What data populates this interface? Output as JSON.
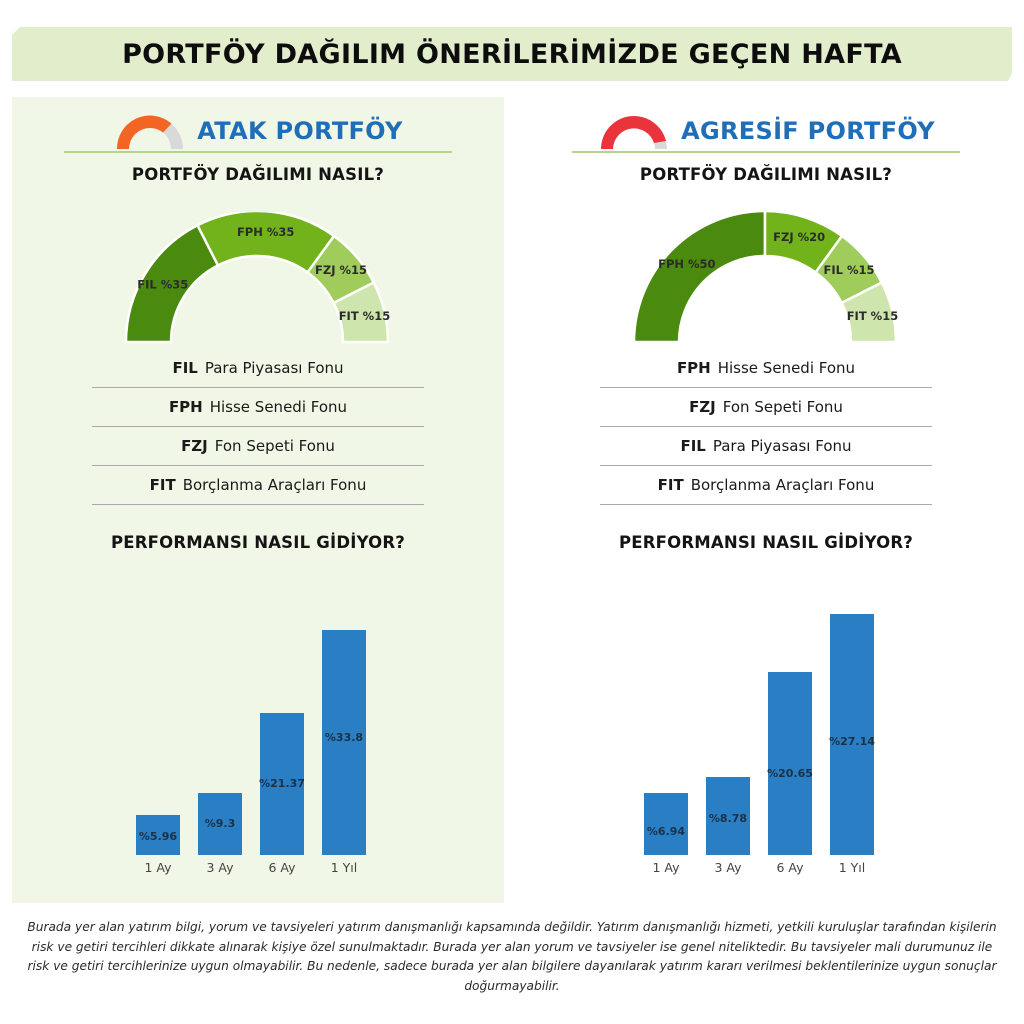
{
  "title": "PORTFÖY DAĞILIM ÖNERİLERİMİZDE GEÇEN HAFTA",
  "colors": {
    "banner_bg": "#e2edcc",
    "left_panel_bg": "#f1f7e7",
    "brand_blue": "#1f6fb8",
    "bar_blue": "#2a7ec3",
    "green_dark": "#4a8a0f",
    "green_mid": "#72b31b",
    "green_light": "#9fcc5b",
    "green_pale": "#cfe5ae",
    "gauge_orange": "#f26522",
    "gauge_red": "#e8343a",
    "gauge_grey": "#d9d9d9"
  },
  "panels": [
    {
      "name": "ATAK PORTFÖY",
      "gauge_icon": "risk-gauge-orange-icon",
      "allocation_title": "PORTFÖY DAĞILIMI NASIL?",
      "legend": [
        {
          "code": "FIL",
          "label": "Para Piyasası Fonu"
        },
        {
          "code": "FPH",
          "label": "Hisse Senedi Fonu"
        },
        {
          "code": "FZJ",
          "label": "Fon Sepeti Fonu"
        },
        {
          "code": "FIT",
          "label": "Borçlanma Araçları Fonu"
        }
      ],
      "performance_title": "PERFORMANSI NASIL GİDİYOR?"
    },
    {
      "name": "AGRESİF PORTFÖY",
      "gauge_icon": "risk-gauge-red-icon",
      "allocation_title": "PORTFÖY DAĞILIMI NASIL?",
      "legend": [
        {
          "code": "FPH",
          "label": "Hisse Senedi Fonu"
        },
        {
          "code": "FZJ",
          "label": "Fon Sepeti Fonu"
        },
        {
          "code": "FIL",
          "label": "Para Piyasası Fonu"
        },
        {
          "code": "FIT",
          "label": "Borçlanma Araçları Fonu"
        }
      ],
      "performance_title": "PERFORMANSI NASIL GİDİYOR?"
    }
  ],
  "chart_data": [
    {
      "type": "pie",
      "title": "ATAK PORTFÖY - PORTFÖY DAĞILIMI NASIL?",
      "variant": "half-donut",
      "categories": [
        "FIL",
        "FPH",
        "FZJ",
        "FIT"
      ],
      "values": [
        35,
        35,
        15,
        15
      ],
      "labels": [
        "FIL %35",
        "FPH %35",
        "FZJ %15",
        "FIT %15"
      ],
      "colors": [
        "#4a8a0f",
        "#72b31b",
        "#9fcc5b",
        "#cfe5ae"
      ]
    },
    {
      "type": "pie",
      "title": "AGRESİF PORTFÖY - PORTFÖY DAĞILIMI NASIL?",
      "variant": "half-donut",
      "categories": [
        "FPH",
        "FZJ",
        "FIL",
        "FIT"
      ],
      "values": [
        50,
        20,
        15,
        15
      ],
      "labels": [
        "FPH %50",
        "FZJ %20",
        "FIL %15",
        "FIT %15"
      ],
      "colors": [
        "#4a8a0f",
        "#72b31b",
        "#9fcc5b",
        "#cfe5ae"
      ]
    },
    {
      "type": "bar",
      "title": "ATAK PORTFÖY - PERFORMANSI NASIL GİDİYOR?",
      "categories": [
        "1 Ay",
        "3 Ay",
        "6 Ay",
        "1 Yıl"
      ],
      "values": [
        5.96,
        9.3,
        21.37,
        33.8
      ],
      "value_labels": [
        "%5.96",
        "%9.3",
        "%21.37",
        "%33.8"
      ],
      "xlabel": "",
      "ylabel": "",
      "grid": false
    },
    {
      "type": "bar",
      "title": "AGRESİF PORTFÖY - PERFORMANSI NASIL GİDİYOR?",
      "categories": [
        "1 Ay",
        "3 Ay",
        "6 Ay",
        "1 Yıl"
      ],
      "values": [
        6.94,
        8.78,
        20.65,
        27.14
      ],
      "value_labels": [
        "%6.94",
        "%8.78",
        "%20.65",
        "%27.14"
      ],
      "xlabel": "",
      "ylabel": "",
      "grid": false
    }
  ],
  "disclaimer": "Burada yer alan yatırım bilgi, yorum ve tavsiyeleri yatırım danışmanlığı kapsamında değildir. Yatırım danışmanlığı hizmeti, yetkili kuruluşlar tarafından kişilerin risk ve getiri tercihleri dikkate alınarak kişiye özel sunulmaktadır. Burada yer alan yorum ve tavsiyeler ise genel niteliktedir. Bu tavsiyeler mali durumunuz ile risk ve getiri tercihlerinize uygun olmayabilir. Bu nedenle, sadece burada yer alan bilgilere dayanılarak yatırım kararı verilmesi beklentilerinize uygun sonuçlar doğurmayabilir."
}
